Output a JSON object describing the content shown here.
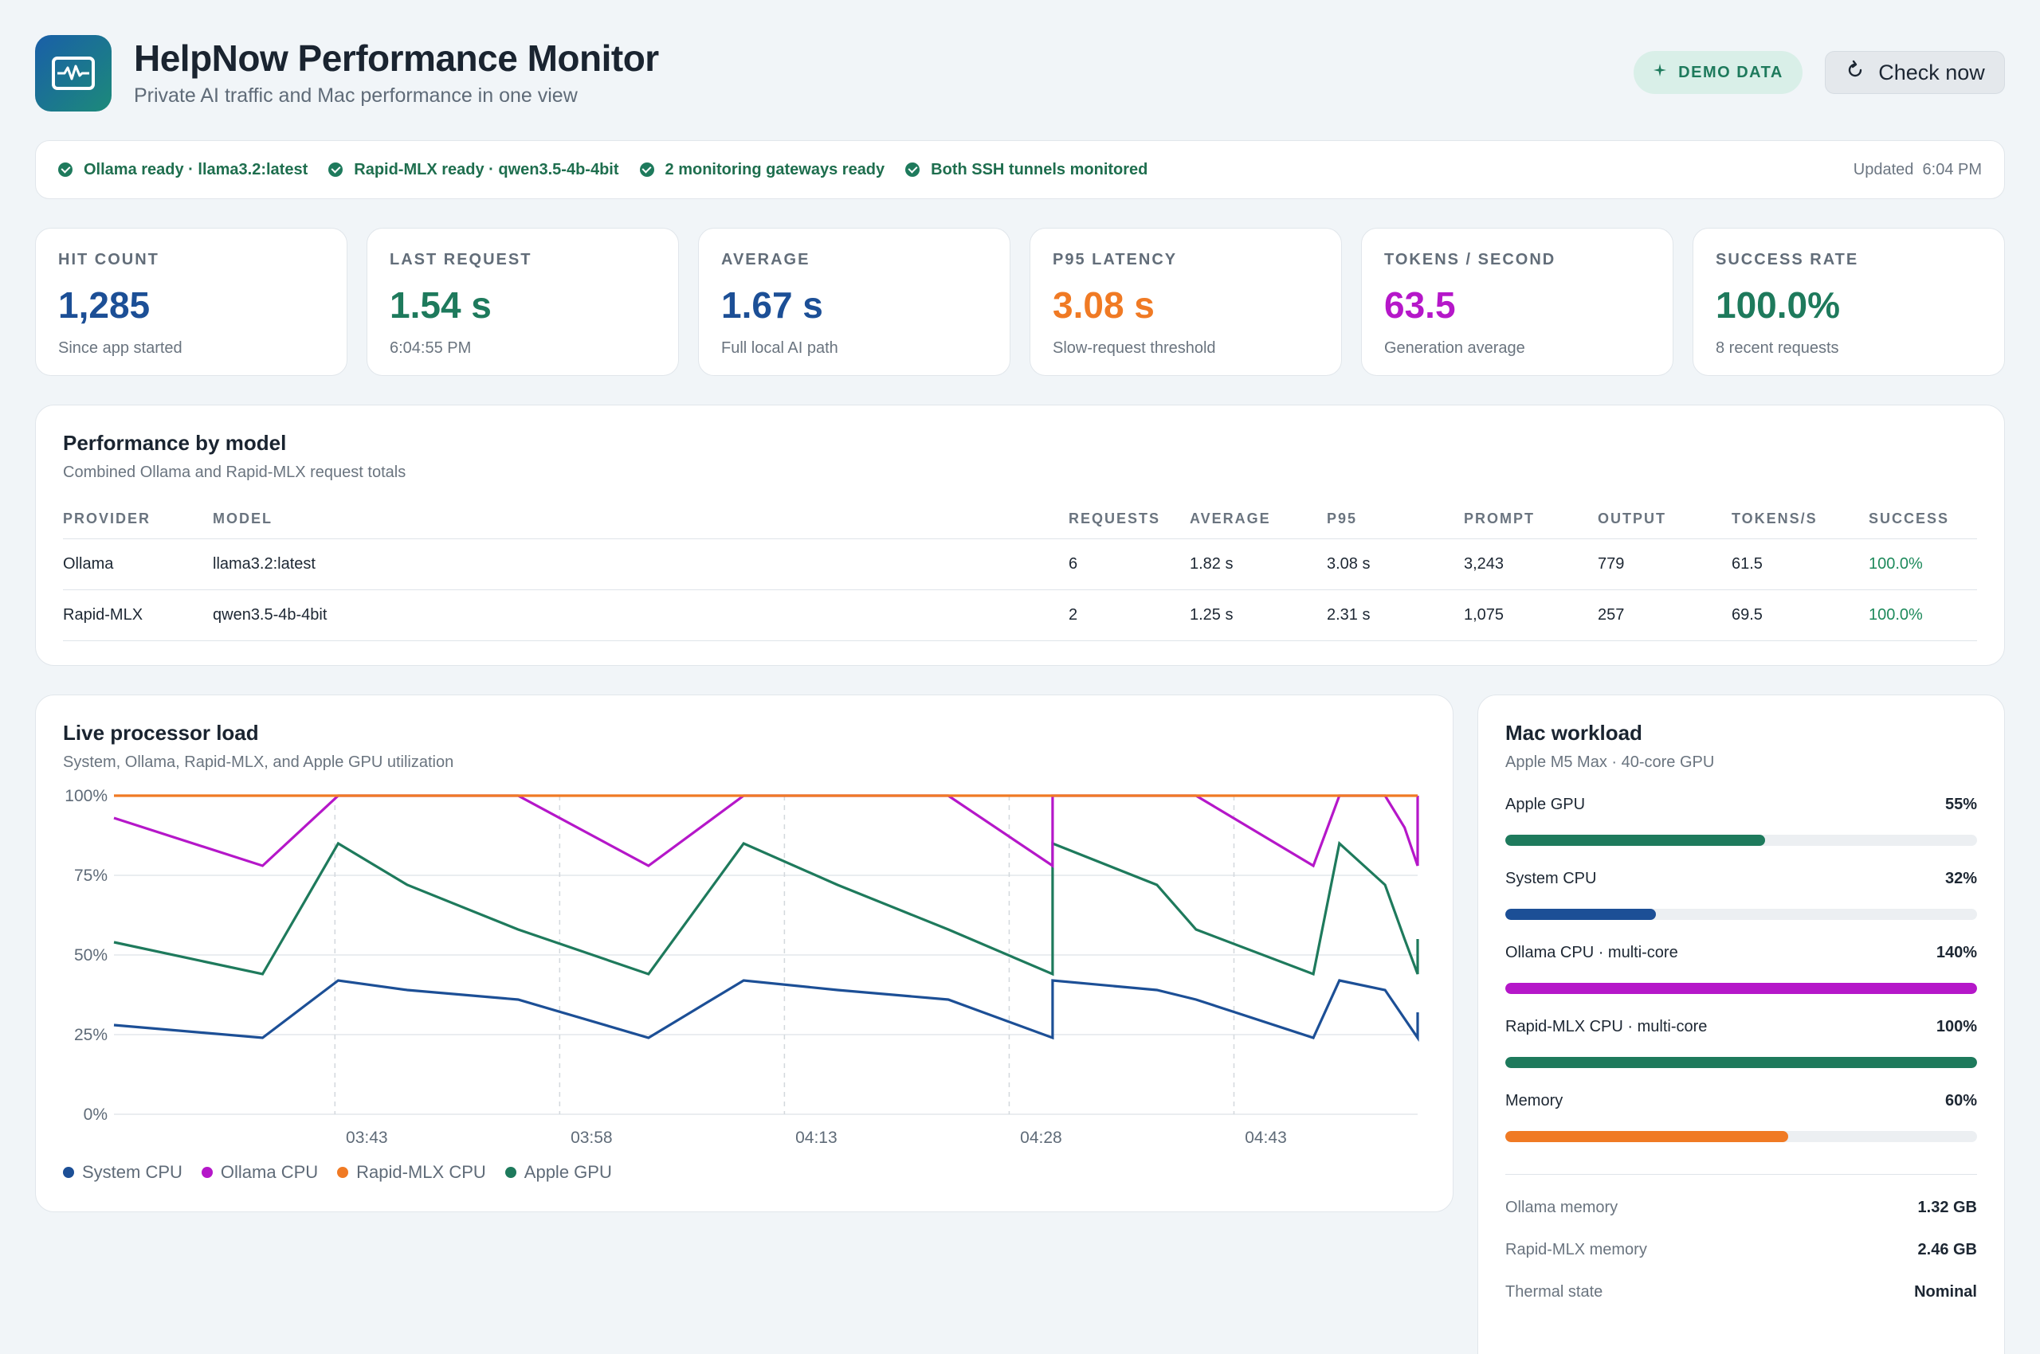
{
  "header": {
    "title": "HelpNow Performance Monitor",
    "subtitle": "Private AI traffic and Mac performance in one view",
    "demo_label": "DEMO DATA",
    "check_label": "Check now"
  },
  "status": {
    "items": [
      "Ollama ready · llama3.2:latest",
      "Rapid-MLX ready · qwen3.5-4b-4bit",
      "2 monitoring gateways ready",
      "Both SSH tunnels monitored"
    ],
    "updated_label": "Updated",
    "updated_time": "6:04 PM"
  },
  "kpis": [
    {
      "label": "HIT COUNT",
      "value": "1,285",
      "sub": "Since app started",
      "color": "#1c4f96"
    },
    {
      "label": "LAST REQUEST",
      "value": "1.54 s",
      "sub": "6:04:55 PM",
      "color": "#1e7a5c"
    },
    {
      "label": "AVERAGE",
      "value": "1.67 s",
      "sub": "Full local AI path",
      "color": "#1c4f96"
    },
    {
      "label": "P95 LATENCY",
      "value": "3.08 s",
      "sub": "Slow-request threshold",
      "color": "#f07a24"
    },
    {
      "label": "TOKENS / SECOND",
      "value": "63.5",
      "sub": "Generation average",
      "color": "#b517c9"
    },
    {
      "label": "SUCCESS RATE",
      "value": "100.0%",
      "sub": "8 recent requests",
      "color": "#1e7a5c"
    }
  ],
  "performance": {
    "title": "Performance by model",
    "subtitle": "Combined Ollama and Rapid-MLX request totals",
    "columns": [
      "PROVIDER",
      "MODEL",
      "REQUESTS",
      "AVERAGE",
      "P95",
      "PROMPT",
      "OUTPUT",
      "TOKENS/S",
      "SUCCESS"
    ],
    "rows": [
      [
        "Ollama",
        "llama3.2:latest",
        "6",
        "1.82 s",
        "3.08 s",
        "3,243",
        "779",
        "61.5",
        "100.0%"
      ],
      [
        "Rapid-MLX",
        "qwen3.5-4b-4bit",
        "2",
        "1.25 s",
        "2.31 s",
        "1,075",
        "257",
        "69.5",
        "100.0%"
      ]
    ]
  },
  "live": {
    "title": "Live processor load",
    "subtitle": "System, Ollama, Rapid-MLX, and Apple GPU utilization"
  },
  "chart_data": {
    "type": "line",
    "x": [
      "03:37",
      "03:41",
      "03:44",
      "03:52",
      "03:56",
      "03:59",
      "04:07",
      "04:11",
      "04:14",
      "04:22",
      "04:26",
      "04:29",
      "04:37",
      "04:41",
      "04:44",
      "04:52",
      "04:56",
      "04:58",
      "04:58"
    ],
    "x_ticks": [
      "03:43",
      "03:58",
      "04:13",
      "04:28",
      "04:43"
    ],
    "y_ticks": [
      "0%",
      "25%",
      "50%",
      "75%",
      "100%"
    ],
    "ylim": [
      0,
      100
    ],
    "grid": true,
    "legend_position": "bottom-left",
    "series": [
      {
        "name": "System CPU",
        "color": "#1c4f96",
        "values": [
          28,
          24,
          42,
          39,
          36,
          24,
          42,
          39,
          36,
          24,
          42,
          39,
          36,
          24,
          42,
          39,
          30,
          24,
          32
        ]
      },
      {
        "name": "Ollama CPU",
        "color": "#b517c9",
        "values": [
          93,
          78,
          100,
          100,
          100,
          78,
          100,
          100,
          100,
          78,
          100,
          100,
          100,
          78,
          100,
          100,
          90,
          78,
          100
        ]
      },
      {
        "name": "Rapid-MLX CPU",
        "color": "#f07a24",
        "values": [
          100,
          100,
          100,
          100,
          100,
          100,
          100,
          100,
          100,
          100,
          100,
          100,
          100,
          100,
          100,
          100,
          100,
          100,
          100
        ]
      },
      {
        "name": "Apple GPU",
        "color": "#1e7a5c",
        "values": [
          54,
          44,
          85,
          72,
          58,
          44,
          85,
          72,
          58,
          44,
          85,
          72,
          58,
          44,
          85,
          72,
          55,
          44,
          55
        ]
      }
    ]
  },
  "workload": {
    "title": "Mac workload",
    "subtitle": "Apple M5 Max · 40-core GPU",
    "bars": [
      {
        "label": "Apple GPU",
        "pct": "55%",
        "fraction": 0.55,
        "color": "#1e7a5c"
      },
      {
        "label": "System CPU",
        "pct": "32%",
        "fraction": 0.32,
        "color": "#1c4f96"
      },
      {
        "label": "Ollama CPU · multi-core",
        "pct": "140%",
        "fraction": 1.0,
        "color": "#b517c9"
      },
      {
        "label": "Rapid-MLX CPU · multi-core",
        "pct": "100%",
        "fraction": 1.0,
        "color": "#1e7a5c"
      },
      {
        "label": "Memory",
        "pct": "60%",
        "fraction": 0.6,
        "color": "#f07a24"
      }
    ],
    "info": [
      {
        "k": "Ollama memory",
        "v": "1.32 GB"
      },
      {
        "k": "Rapid-MLX memory",
        "v": "2.46 GB"
      },
      {
        "k": "Thermal state",
        "v": "Nominal"
      }
    ]
  }
}
